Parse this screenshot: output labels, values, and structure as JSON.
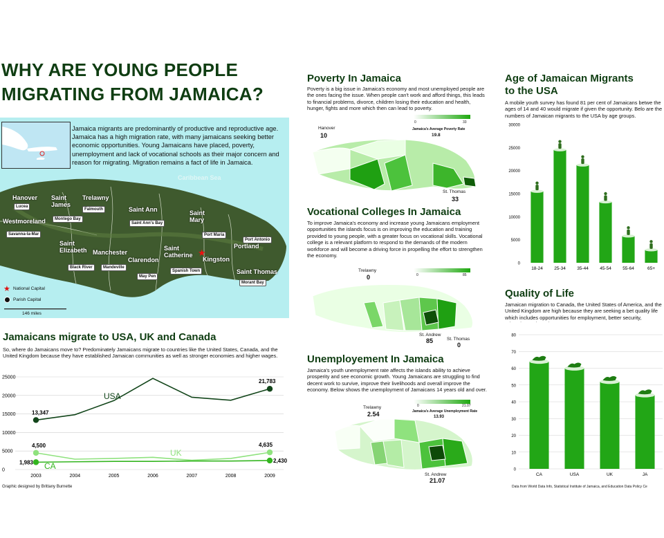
{
  "title": "WHY ARE YOUNG PEOPLE MIGRATING FROM JAMAICA?",
  "map_section": {
    "intro": "Jamaica migrants are predominantly of productive and reproductive age. Jamaica has a high migration rate, with many jamaicans seeking better economic opportunities. Young Jamaicans have placed, poverty, unemployment and lack of  vocational schools as their major concern and reason for migrating. Migration remains a fact of life in Jamaica.",
    "sea_label": "Caribbean Sea",
    "parishes": [
      "Hanover",
      "Saint James",
      "Trelawny",
      "Westmoreland",
      "Saint Ann",
      "Saint Mary",
      "Saint Elizabeth",
      "Manchester",
      "Clarendon",
      "Saint Catherine",
      "Portland",
      "Kingston",
      "Saint Thomas"
    ],
    "towns": [
      "Lucea",
      "Montego Bay",
      "Falmouth",
      "Saint Ann's Bay",
      "Port Maria",
      "Port Antonio",
      "Savanna-la-Mar",
      "Black River",
      "Mandeville",
      "May Pen",
      "Spanish Town",
      "Morant Bay"
    ],
    "legend": {
      "national_capital": "National Capital",
      "parish_capital": "Parish Capital",
      "scale": "146 miles"
    }
  },
  "migration": {
    "heading": "Jamaicans migrate to USA, UK and Canada",
    "text": "So, where do Jamaicans move to? Predominately Jamaicans migrate to countries like the United States, Canada, and the United Kingdom because they have established Jamaican communities as well as stronger economies and higher wages.",
    "credit": "Graphic designed by Brittany Burnette"
  },
  "poverty": {
    "heading": "Poverty In Jamaica",
    "text": "Poverty is a big issue in Jamaica's economy and most unemployed people are the ones facing the issue. When people can't work and afford things, this leads to financial problems, divorce, children losing their education and health, hunger, fights and more which then can lead to poverty.",
    "scale_min": "0",
    "scale_max": "33",
    "scale_label": "Jamaica's Average Poverty Rate",
    "scale_avg": "19.8",
    "low_name": "Hanover",
    "low_value": "10",
    "high_name": "St. Thomas",
    "high_value": "33"
  },
  "vocational": {
    "heading": "Vocational Colleges In Jamaica",
    "text": "To improve Jamaica's economy and increase young Jamaicans employment opportunities the islands focus is on improving the education and training provided to young people, with a greater focus on vocational skills. Vocational college is a relevant platform to respond to the demands of the modern workforce and will become a driving force in propelling the effort to strengthen the economy.",
    "scale_min": "0",
    "scale_max": "85",
    "low_name": "Trelawny",
    "low_value": "0",
    "high_name": "St. Andrew",
    "high_value": "85",
    "other_name": "St. Thomas",
    "other_value": "0"
  },
  "unemployment": {
    "heading": "Unemployement In Jamaica",
    "text": "Jamaica's youth unemployment rate affects the islands ability to achieve prosperity and see economic growth. Young Jamaicans are struggling to find decent work to survive, improve their livelihoods and overall improve the economy. Below shows the unemployment of Jamaicans 14 years old and over.",
    "scale_min": "0",
    "scale_max": "21.07",
    "scale_label": "Jamaica's Average Unemployment Rate",
    "scale_avg": "13.93",
    "low_name": "Trelawny",
    "low_value": "2.54",
    "high_name": "St. Andrew",
    "high_value": "21.07"
  },
  "age": {
    "heading_line1": "Age of Jamaican Migrants",
    "heading_line2": "to the USA",
    "text": "A mobile youth survey has found 81 per cent of Jamaicans betwe the ages of 14 and 40 would migrate if given the opportunity. Belo are the numbers of Jamaican migrants to the USA by age groups."
  },
  "quality": {
    "heading": "Quality of Life",
    "text": "Jamaican migration to Canada, the United States of America, and the United Kingdom are high because they are seeking a bet quality life which includes opportunities for employment, better security, education and much more.",
    "credit": "Data from World Data Info, Statistical Institute of Jamaica, and Education Data Policy Ce"
  },
  "colors": {
    "dark_green": "#0f3d12",
    "bright_green": "#22a616",
    "light_green": "#8fe27e",
    "sea": "#b6eef0"
  },
  "chart_data": [
    {
      "type": "line",
      "x": [
        "2003",
        "2004",
        "2005",
        "2006",
        "2007",
        "2008",
        "2009"
      ],
      "series": [
        {
          "name": "USA",
          "values": [
            13347,
            14800,
            18600,
            24600,
            19500,
            18700,
            21783
          ]
        },
        {
          "name": "UK",
          "values": [
            4500,
            2800,
            3000,
            3300,
            2500,
            3000,
            4635
          ]
        },
        {
          "name": "CA",
          "values": [
            1983,
            2100,
            2200,
            2200,
            2300,
            2300,
            2430
          ]
        }
      ],
      "point_labels": {
        "USA": [
          "13,347",
          "21,783"
        ],
        "UK": [
          "4,500",
          "4,635"
        ],
        "CA": [
          "1,983",
          "2,430"
        ]
      },
      "yticks": [
        "0",
        "5000",
        "10000",
        "15000",
        "20000",
        "25000"
      ],
      "ylim": [
        0,
        25000
      ],
      "grid": true
    },
    {
      "type": "bar",
      "categories": [
        "18-24",
        "25-34",
        "35-44",
        "45-54",
        "55-64",
        "65+"
      ],
      "values": [
        15500,
        24500,
        21200,
        13200,
        5800,
        2800
      ],
      "yticks": [
        "0",
        "5000",
        "10000",
        "15000",
        "20000",
        "25000",
        "30000"
      ],
      "ylim": [
        0,
        30000
      ]
    },
    {
      "type": "bar",
      "categories": [
        "CA",
        "USA",
        "UK",
        "JA"
      ],
      "values": [
        64,
        60,
        52,
        44
      ],
      "yticks": [
        "0",
        "10",
        "20",
        "30",
        "40",
        "50",
        "60",
        "70",
        "80"
      ],
      "ylim": [
        0,
        80
      ],
      "grid": true
    }
  ]
}
